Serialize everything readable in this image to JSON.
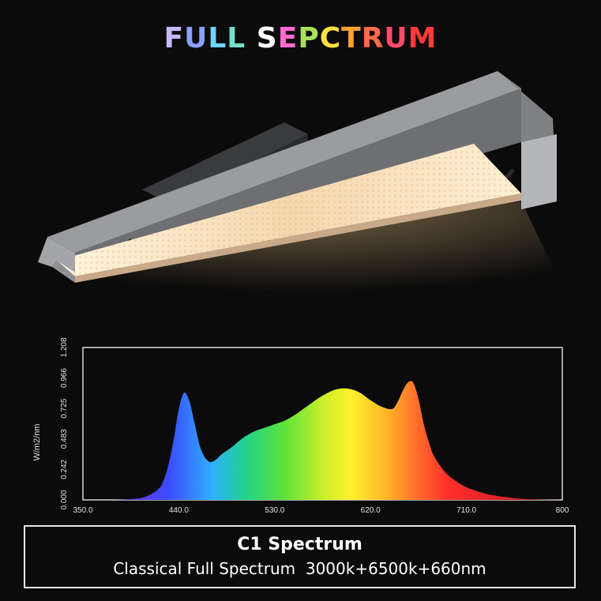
{
  "header": {
    "title": "FULL SEPCTRUM",
    "title_colors": [
      "#c9b8ff",
      "#8aa0ff",
      "#6fd3ff",
      "#73e0c8",
      "#ffffff",
      "#ff6ad5",
      "#a8e05a",
      "#ffe040",
      "#ffa030",
      "#ff6a4a",
      "#ff4a6a",
      "#ff3a3a",
      "#e0303a"
    ]
  },
  "product": {
    "icon": "grow-light-bar-icon",
    "led_color": "#fff3d6",
    "glow_color": "#d7b47a",
    "frame_color": "#8e9094"
  },
  "chart_data": {
    "type": "area",
    "title": "",
    "xlabel": "",
    "ylabel": "W/m2/nm",
    "xlim": [
      350,
      800
    ],
    "ylim": [
      0,
      1.208
    ],
    "x_ticks": [
      "350.0",
      "440.0",
      "530.0",
      "620.0",
      "710.0",
      "800"
    ],
    "y_ticks": [
      "0.000",
      "0.242",
      "0.483",
      "0.725",
      "0.966",
      "1.208"
    ],
    "grid": false,
    "series": [
      {
        "x": [
          350,
          380,
          400,
          410,
          420,
          425,
          430,
          435,
          440,
          445,
          450,
          455,
          460,
          465,
          470,
          475,
          480,
          485,
          490,
          500,
          510,
          520,
          530,
          540,
          550,
          560,
          570,
          580,
          590,
          600,
          610,
          620,
          630,
          640,
          645,
          650,
          655,
          660,
          665,
          670,
          675,
          680,
          690,
          700,
          710,
          720,
          730,
          740,
          750,
          760,
          780,
          800
        ],
        "y": [
          0,
          0,
          0.01,
          0.03,
          0.08,
          0.14,
          0.27,
          0.47,
          0.72,
          0.85,
          0.78,
          0.6,
          0.42,
          0.33,
          0.3,
          0.32,
          0.36,
          0.39,
          0.42,
          0.49,
          0.54,
          0.57,
          0.6,
          0.63,
          0.68,
          0.74,
          0.8,
          0.85,
          0.88,
          0.88,
          0.85,
          0.79,
          0.74,
          0.72,
          0.77,
          0.86,
          0.93,
          0.93,
          0.8,
          0.6,
          0.45,
          0.34,
          0.22,
          0.15,
          0.1,
          0.07,
          0.045,
          0.03,
          0.02,
          0.01,
          0.003,
          0
        ]
      }
    ]
  },
  "caption": {
    "title": "C1 Spectrum",
    "subtitle": "Classical Full Spectrum  3000k+6500k+660nm"
  }
}
